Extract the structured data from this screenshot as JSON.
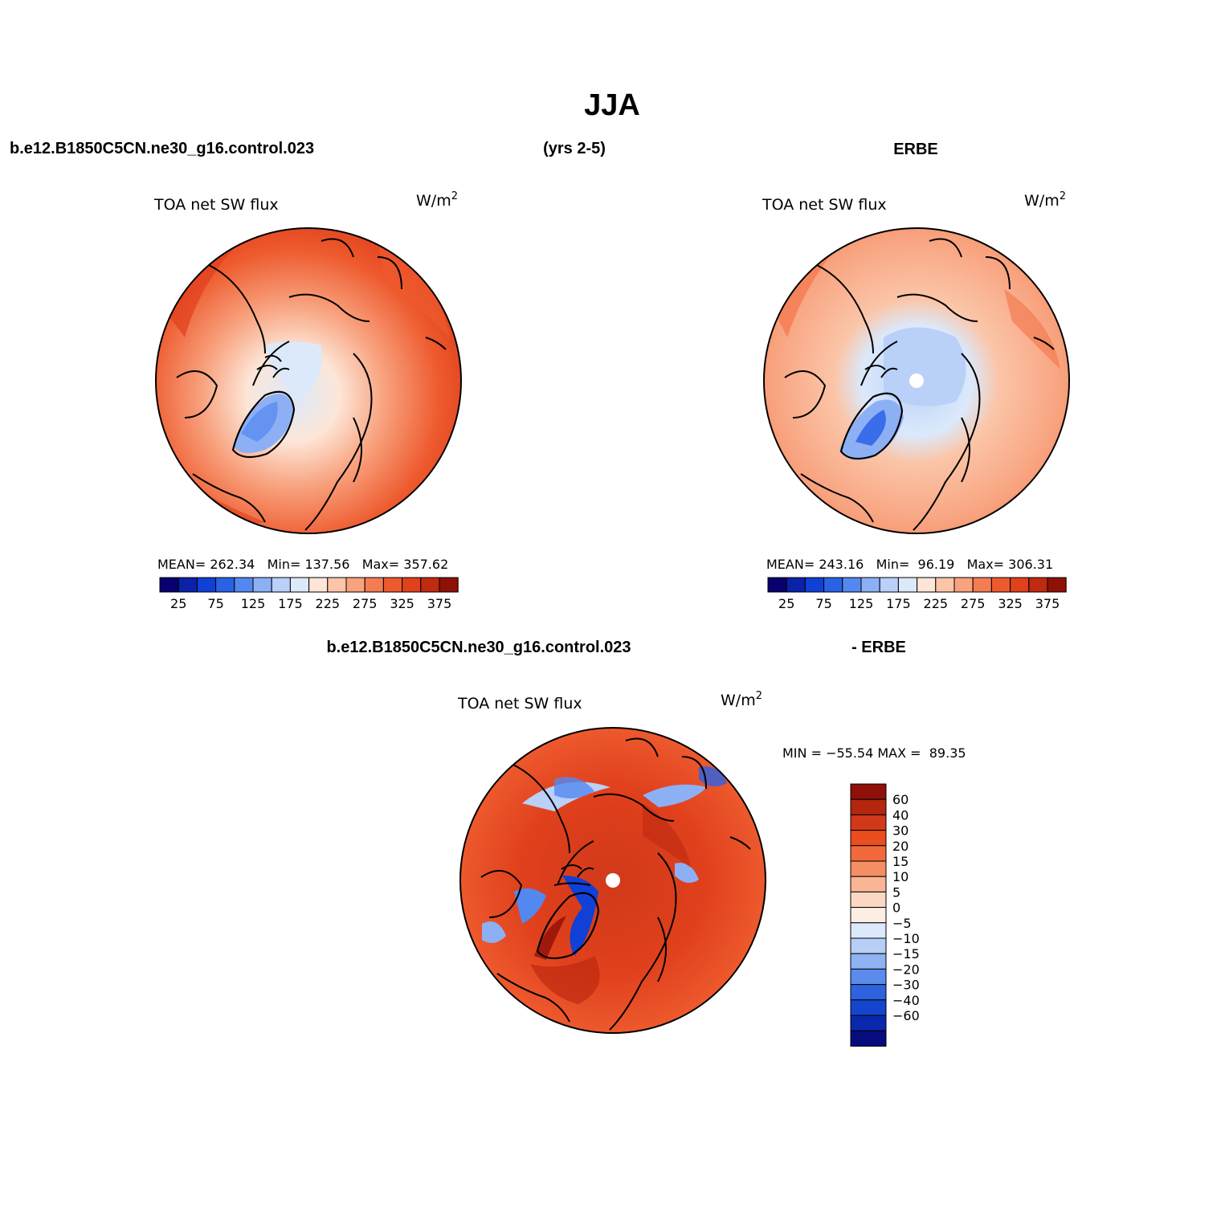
{
  "figure": {
    "season": "JJA",
    "case_name": "b.e12.B1850C5CN.ne30_g16.control.023",
    "years": "(yrs 2-5)",
    "obs_name": "ERBE",
    "diff_case_name": "b.e12.B1850C5CN.ne30_g16.control.023",
    "diff_obs_name": "- ERBE"
  },
  "panels": {
    "model": {
      "field_label": "TOA net SW flux",
      "units": "W/m",
      "units_exp": "2",
      "stats": "MEAN= 262.34   Min= 137.56   Max= 357.62"
    },
    "obs": {
      "field_label": "TOA net SW flux",
      "units": "W/m",
      "units_exp": "2",
      "stats": "MEAN= 243.16   Min=  96.19   Max= 306.31"
    },
    "diff": {
      "field_label": "TOA net SW flux",
      "units": "W/m",
      "units_exp": "2",
      "stats": "MIN = −55.54 MAX =  89.35"
    }
  },
  "colorbar_horizontal": {
    "colors": [
      "#08006e",
      "#0a21a8",
      "#1040d6",
      "#2a62e6",
      "#5388f0",
      "#8db0f5",
      "#b9d0f8",
      "#dbe9fb",
      "#fde6d8",
      "#fbc5a8",
      "#f8a27e",
      "#f47c53",
      "#ee5a2e",
      "#e0401c",
      "#bf2a10",
      "#8f1007"
    ],
    "tick_labels": [
      "25",
      "75",
      "125",
      "175",
      "225",
      "275",
      "325",
      "375"
    ]
  },
  "colorbar_vertical": {
    "colors": [
      "#8f1007",
      "#b5260f",
      "#d0391a",
      "#ea4d1e",
      "#f26a3c",
      "#f58f63",
      "#f9b594",
      "#fcd8c4",
      "#fdeee4",
      "#dbe9fb",
      "#b7cff7",
      "#8fb2f3",
      "#5b8cec",
      "#2d63df",
      "#1545cc",
      "#0a28ad",
      "#060b7e"
    ],
    "tick_labels": [
      "60",
      "40",
      "30",
      "20",
      "15",
      "10",
      "5",
      "0",
      "−5",
      "−10",
      "−15",
      "−20",
      "−30",
      "−40",
      "−60"
    ]
  }
}
